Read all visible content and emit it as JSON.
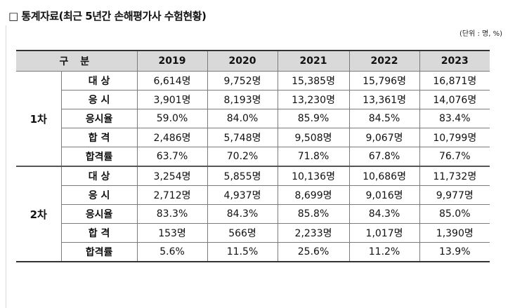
{
  "heading": "□ 통계자료(최근 5년간 손해평가사 수험현황)",
  "unit": "(단위 : 명, %)",
  "table": {
    "header_label": "구 분",
    "years": [
      "2019",
      "2020",
      "2021",
      "2022",
      "2023"
    ],
    "groups": [
      {
        "stage": "1차",
        "rows": [
          {
            "label": "대 상",
            "values": [
              "6,614명",
              "9,752명",
              "15,385명",
              "15,796명",
              "16,871명"
            ]
          },
          {
            "label": "응 시",
            "values": [
              "3,901명",
              "8,193명",
              "13,230명",
              "13,361명",
              "14,076명"
            ]
          },
          {
            "label": "응시율",
            "values": [
              "59.0%",
              "84.0%",
              "85.9%",
              "84.5%",
              "83.4%"
            ]
          },
          {
            "label": "합 격",
            "values": [
              "2,486명",
              "5,748명",
              "9,508명",
              "9,067명",
              "10,799명"
            ]
          },
          {
            "label": "합격률",
            "values": [
              "63.7%",
              "70.2%",
              "71.8%",
              "67.8%",
              "76.7%"
            ]
          }
        ]
      },
      {
        "stage": "2차",
        "rows": [
          {
            "label": "대 상",
            "values": [
              "3,254명",
              "5,855명",
              "10,136명",
              "10,686명",
              "11,732명"
            ]
          },
          {
            "label": "응 시",
            "values": [
              "2,712명",
              "4,937명",
              "8,699명",
              "9,016명",
              "9,977명"
            ]
          },
          {
            "label": "응시율",
            "values": [
              "83.3%",
              "84.3%",
              "85.8%",
              "84.3%",
              "85.0%"
            ]
          },
          {
            "label": "합 격",
            "values": [
              "153명",
              "566명",
              "2,233명",
              "1,017명",
              "1,390명"
            ]
          },
          {
            "label": "합격률",
            "values": [
              "5.6%",
              "11.5%",
              "25.6%",
              "11.2%",
              "13.9%"
            ]
          }
        ]
      }
    ]
  }
}
